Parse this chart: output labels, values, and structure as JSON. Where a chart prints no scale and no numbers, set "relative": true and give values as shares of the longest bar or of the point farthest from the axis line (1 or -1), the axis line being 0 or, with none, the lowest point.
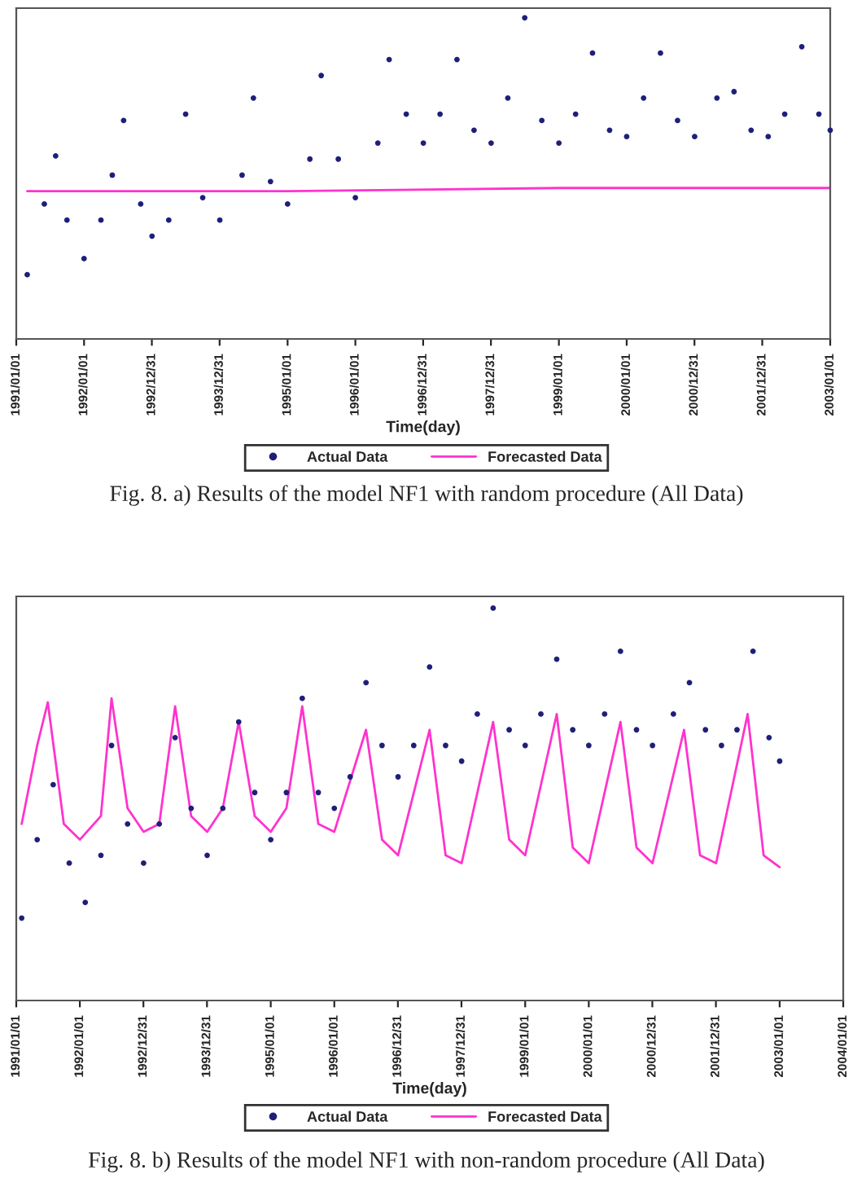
{
  "chart_data": [
    {
      "type": "scatter",
      "relative": true,
      "xlabel": "Time(day)",
      "tick_labels": "x",
      "legend": "bottom",
      "grid": false,
      "xlim": [
        "1991-01-01",
        "2003-01-01"
      ],
      "xticks": [
        {
          "value": "1991-01-01",
          "label": "1991/01/01"
        },
        {
          "value": "1992-01-01",
          "label": "1992/01/01"
        },
        {
          "value": "1992-12-31",
          "label": "1992/12/31"
        },
        {
          "value": "1993-12-31",
          "label": "1993/12/31"
        },
        {
          "value": "1995-01-01",
          "label": "1995/01/01"
        },
        {
          "value": "1996-01-01",
          "label": "1996/01/01"
        },
        {
          "value": "1996-12-31",
          "label": "1996/12/31"
        },
        {
          "value": "1997-12-31",
          "label": "1997/12/31"
        },
        {
          "value": "1999-01-01",
          "label": "1999/01/01"
        },
        {
          "value": "2000-01-01",
          "label": "2000/01/01"
        },
        {
          "value": "2000-12-31",
          "label": "2000/12/31"
        },
        {
          "value": "2001-12-31",
          "label": "2001/12/31"
        },
        {
          "value": "2003-01-01",
          "label": "2003/01/01"
        }
      ],
      "series": [
        {
          "name": "Actual Data",
          "marker": "circle",
          "color": "#1f1f7a",
          "x": [
            "1991-03",
            "1991-06",
            "1991-08",
            "1991-10",
            "1992-01",
            "1992-04",
            "1992-06",
            "1992-08",
            "1992-11",
            "1993-01",
            "1993-04",
            "1993-07",
            "1993-10",
            "1994-01",
            "1994-05",
            "1994-07",
            "1994-10",
            "1995-01",
            "1995-05",
            "1995-07",
            "1995-10",
            "1996-01",
            "1996-05",
            "1996-07",
            "1996-10",
            "1997-01",
            "1997-04",
            "1997-07",
            "1997-10",
            "1998-01",
            "1998-04",
            "1998-07",
            "1998-10",
            "1999-01",
            "1999-04",
            "1999-07",
            "1999-10",
            "2000-01",
            "2000-04",
            "2000-07",
            "2000-10",
            "2001-01",
            "2001-05",
            "2001-08",
            "2001-11",
            "2002-02",
            "2002-05",
            "2002-08",
            "2002-11",
            "2003-01"
          ],
          "values": [
            0.2,
            0.42,
            0.57,
            0.37,
            0.25,
            0.37,
            0.51,
            0.68,
            0.42,
            0.32,
            0.37,
            0.7,
            0.44,
            0.37,
            0.51,
            0.75,
            0.49,
            0.42,
            0.56,
            0.82,
            0.56,
            0.44,
            0.61,
            0.87,
            0.7,
            0.61,
            0.7,
            0.87,
            0.65,
            0.61,
            0.75,
            1.0,
            0.68,
            0.61,
            0.7,
            0.89,
            0.65,
            0.63,
            0.75,
            0.89,
            0.68,
            0.63,
            0.75,
            0.77,
            0.65,
            0.63,
            0.7,
            0.91,
            0.7,
            0.65
          ]
        },
        {
          "name": "Forecasted Data",
          "type": "line",
          "marker": "none",
          "line_style": "solid",
          "color": "#ff33cc",
          "x": [
            "1991-03",
            "1995-01",
            "1999-01",
            "2003-01"
          ],
          "values": [
            0.46,
            0.46,
            0.47,
            0.47
          ]
        }
      ],
      "annotations": [
        "Fig. 8. a) Results of the model NF1 with random procedure (All Data)"
      ]
    },
    {
      "type": "scatter",
      "relative": true,
      "xlabel": "Time(day)",
      "tick_labels": "x",
      "legend": "bottom",
      "grid": false,
      "xlim": [
        "1991-01-01",
        "2004-01-01"
      ],
      "xticks": [
        {
          "value": "1991-01-01",
          "label": "1991/01/01"
        },
        {
          "value": "1992-01-01",
          "label": "1992/01/01"
        },
        {
          "value": "1992-12-31",
          "label": "1992/12/31"
        },
        {
          "value": "1993-12-31",
          "label": "1993/12/31"
        },
        {
          "value": "1995-01-01",
          "label": "1995/01/01"
        },
        {
          "value": "1996-01-01",
          "label": "1996/01/01"
        },
        {
          "value": "1996-12-31",
          "label": "1996/12/31"
        },
        {
          "value": "1997-12-31",
          "label": "1997/12/31"
        },
        {
          "value": "1999-01-01",
          "label": "1999/01/01"
        },
        {
          "value": "2000-01-01",
          "label": "2000/01/01"
        },
        {
          "value": "2000-12-31",
          "label": "2000/12/31"
        },
        {
          "value": "2001-12-31",
          "label": "2001/12/31"
        },
        {
          "value": "2003-01-01",
          "label": "2003/01/01"
        },
        {
          "value": "2004-01-01",
          "label": "2004/01/01"
        }
      ],
      "series": [
        {
          "name": "Actual Data",
          "marker": "circle",
          "color": "#1f1f7a",
          "x": [
            "1991-02",
            "1991-05",
            "1991-08",
            "1991-11",
            "1992-02",
            "1992-05",
            "1992-07",
            "1992-10",
            "1993-01",
            "1993-04",
            "1993-07",
            "1993-10",
            "1994-01",
            "1994-04",
            "1994-07",
            "1994-10",
            "1995-01",
            "1995-04",
            "1995-07",
            "1995-10",
            "1996-01",
            "1996-04",
            "1996-07",
            "1996-10",
            "1997-01",
            "1997-04",
            "1997-07",
            "1997-10",
            "1998-01",
            "1998-04",
            "1998-07",
            "1998-10",
            "1999-01",
            "1999-04",
            "1999-07",
            "1999-10",
            "2000-01",
            "2000-04",
            "2000-07",
            "2000-10",
            "2001-01",
            "2001-05",
            "2001-08",
            "2001-11",
            "2002-02",
            "2002-05",
            "2002-08",
            "2002-11",
            "2003-01"
          ],
          "values": [
            0.21,
            0.41,
            0.55,
            0.35,
            0.25,
            0.37,
            0.65,
            0.45,
            0.35,
            0.45,
            0.67,
            0.49,
            0.37,
            0.49,
            0.71,
            0.53,
            0.41,
            0.53,
            0.77,
            0.53,
            0.49,
            0.57,
            0.81,
            0.65,
            0.57,
            0.65,
            0.85,
            0.65,
            0.61,
            0.73,
            1.0,
            0.69,
            0.65,
            0.73,
            0.87,
            0.69,
            0.65,
            0.73,
            0.89,
            0.69,
            0.65,
            0.73,
            0.81,
            0.69,
            0.65,
            0.69,
            0.89,
            0.67,
            0.61
          ]
        },
        {
          "name": "Forecasted Data",
          "type": "line",
          "marker": "none",
          "line_style": "solid",
          "color": "#ff33cc",
          "x": [
            "1991-02",
            "1991-05",
            "1991-07",
            "1991-10",
            "1992-01",
            "1992-05",
            "1992-07",
            "1992-10",
            "1993-01",
            "1993-04",
            "1993-07",
            "1993-10",
            "1994-01",
            "1994-04",
            "1994-07",
            "1994-10",
            "1995-01",
            "1995-04",
            "1995-07",
            "1995-10",
            "1996-01",
            "1996-07",
            "1996-10",
            "1997-01",
            "1997-07",
            "1997-10",
            "1998-01",
            "1998-07",
            "1998-10",
            "1999-01",
            "1999-07",
            "1999-10",
            "2000-01",
            "2000-07",
            "2000-10",
            "2001-01",
            "2001-07",
            "2001-10",
            "2002-01",
            "2002-07",
            "2002-10",
            "2003-01"
          ],
          "values": [
            0.45,
            0.65,
            0.76,
            0.45,
            0.41,
            0.47,
            0.77,
            0.49,
            0.43,
            0.45,
            0.75,
            0.47,
            0.43,
            0.49,
            0.71,
            0.47,
            0.43,
            0.49,
            0.75,
            0.45,
            0.43,
            0.69,
            0.41,
            0.37,
            0.69,
            0.37,
            0.35,
            0.71,
            0.41,
            0.37,
            0.73,
            0.39,
            0.35,
            0.71,
            0.39,
            0.35,
            0.69,
            0.37,
            0.35,
            0.73,
            0.37,
            0.34
          ]
        }
      ],
      "annotations": [
        "Fig. 8. b) Results of the model NF1 with non-random procedure (All Data)"
      ]
    }
  ]
}
